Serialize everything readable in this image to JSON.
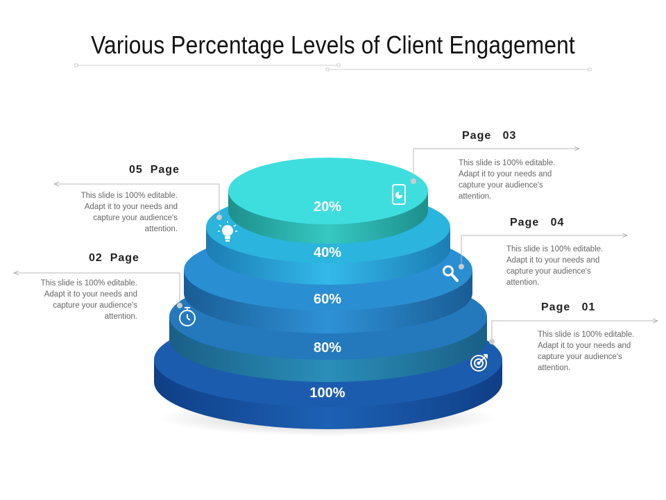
{
  "title": "Various Percentage Levels of Client Engagement",
  "levels": [
    {
      "label": "20%",
      "icon": "tablet-chart-icon",
      "color": "#3fdede"
    },
    {
      "label": "40%",
      "icon": "lightbulb-icon",
      "color": "#2ab4de"
    },
    {
      "label": "60%",
      "icon": "magnifier-icon",
      "color": "#2a8fd2"
    },
    {
      "label": "80%",
      "icon": "stopwatch-icon",
      "color": "#2479bd"
    },
    {
      "label": "100%",
      "icon": "target-icon",
      "color": "#1c5cae"
    }
  ],
  "callouts": {
    "page03": {
      "heading": "Page   03",
      "text": "This slide is 100% editable. Adapt it to your needs and capture your audience's attention."
    },
    "page04": {
      "heading": "Page   04",
      "text": "This slide is 100% editable. Adapt it to your needs and capture your audience's attention."
    },
    "page01": {
      "heading": "Page   01",
      "text": "This slide is 100% editable. Adapt it to your needs and capture your audience's attention."
    },
    "page05": {
      "heading": "05  Page",
      "text": "This slide is 100% editable. Adapt it to your needs and capture your audience's attention."
    },
    "page02": {
      "heading": "02  Page",
      "text": "This slide is 100% editable. Adapt it to your needs and capture your audience's attention."
    }
  }
}
